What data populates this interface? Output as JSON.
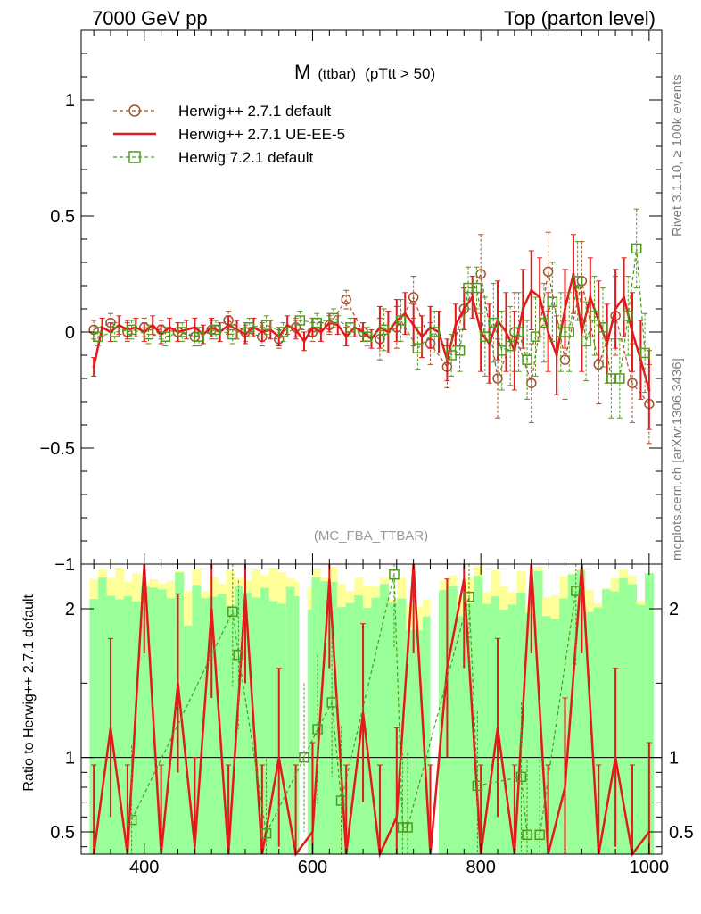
{
  "header": {
    "left": "7000 GeV pp",
    "right": "Top (parton level)"
  },
  "side_text": {
    "rivet": "Rivet 3.1.10, ≥ 100k events",
    "mcplots": "mcplots.cern.ch [arXiv:1306.3436]"
  },
  "chart_data": [
    {
      "type": "line",
      "title_main": "M",
      "title_sub": "(ttbar)",
      "title_rest": "(pTtt > 50)",
      "watermark": "(MC_FBA_TTBAR)",
      "xlim": [
        325,
        1015
      ],
      "ylim": [
        -1.0,
        1.3
      ],
      "yticks": [
        {
          "v": -1,
          "label": "−1"
        },
        {
          "v": -0.5,
          "label": "−0.5"
        },
        {
          "v": 0,
          "label": "0"
        },
        {
          "v": 0.5,
          "label": "0.5"
        },
        {
          "v": 1,
          "label": "1"
        }
      ],
      "legend_position": "top-left",
      "series": [
        {
          "name": "Herwig++ 2.7.1 default",
          "color": "#a0522d",
          "marker": "circle",
          "dashed": true,
          "x": [
            340,
            360,
            380,
            400,
            420,
            440,
            460,
            480,
            500,
            520,
            540,
            560,
            580,
            600,
            620,
            640,
            660,
            680,
            700,
            720,
            740,
            760,
            780,
            800,
            820,
            840,
            860,
            880,
            900,
            920,
            940,
            960,
            980,
            1000
          ],
          "y": [
            0.01,
            0.04,
            0.0,
            0.02,
            0.01,
            0.0,
            -0.02,
            0.01,
            0.05,
            0.0,
            -0.02,
            -0.03,
            0.02,
            0.0,
            0.03,
            0.14,
            0.0,
            -0.03,
            0.02,
            0.15,
            -0.05,
            -0.15,
            0.1,
            0.25,
            -0.2,
            0.0,
            -0.22,
            0.26,
            -0.12,
            0.22,
            -0.14,
            0.07,
            -0.22,
            -0.31
          ]
        },
        {
          "name": "Herwig++ 2.7.1 UE-EE-5",
          "color": "#e31a1c",
          "marker": "none",
          "dashed": false,
          "x": [
            340,
            350,
            360,
            370,
            380,
            390,
            400,
            410,
            420,
            430,
            440,
            450,
            460,
            470,
            480,
            490,
            500,
            510,
            520,
            530,
            540,
            550,
            560,
            570,
            580,
            590,
            600,
            610,
            620,
            630,
            640,
            650,
            660,
            670,
            680,
            690,
            700,
            710,
            720,
            730,
            740,
            750,
            760,
            770,
            780,
            790,
            800,
            810,
            820,
            830,
            840,
            850,
            860,
            870,
            880,
            890,
            900,
            910,
            920,
            930,
            940,
            950,
            960,
            970,
            980,
            990,
            1000
          ],
          "y": [
            -0.15,
            0.02,
            0.0,
            0.03,
            0.01,
            0.02,
            0.0,
            0.03,
            -0.01,
            0.02,
            0.0,
            0.01,
            0.02,
            -0.01,
            0.02,
            0.0,
            0.03,
            0.01,
            -0.01,
            0.02,
            0.0,
            0.01,
            -0.02,
            0.03,
            0.01,
            -0.04,
            0.02,
            0.0,
            0.04,
            0.03,
            -0.02,
            0.02,
            0.0,
            -0.03,
            0.02,
            0.0,
            0.05,
            0.08,
            0.03,
            -0.02,
            0.02,
            0.0,
            -0.12,
            0.03,
            0.1,
            0.15,
            0.0,
            -0.05,
            0.05,
            0.0,
            -0.08,
            0.1,
            0.18,
            0.15,
            0.0,
            -0.1,
            0.1,
            0.25,
            0.0,
            0.15,
            0.05,
            -0.05,
            0.1,
            0.15,
            0.0,
            -0.12,
            -0.25
          ]
        },
        {
          "name": "Herwig 7.2.1 default",
          "color": "#4f9a1d",
          "marker": "square",
          "dashed": true,
          "x": [
            345,
            365,
            385,
            405,
            425,
            445,
            465,
            485,
            505,
            525,
            545,
            565,
            585,
            605,
            625,
            645,
            665,
            685,
            705,
            725,
            745,
            765,
            775,
            785,
            795,
            805,
            815,
            825,
            835,
            845,
            855,
            865,
            875,
            885,
            895,
            905,
            915,
            925,
            935,
            945,
            955,
            965,
            975,
            985,
            995
          ],
          "y": [
            -0.02,
            0.0,
            0.01,
            -0.01,
            -0.02,
            0.0,
            -0.02,
            0.01,
            -0.01,
            0.02,
            0.03,
            0.0,
            0.05,
            0.04,
            0.06,
            0.02,
            -0.02,
            0.01,
            0.05,
            -0.07,
            0.0,
            -0.1,
            -0.08,
            0.19,
            0.19,
            -0.02,
            0.04,
            -0.08,
            -0.06,
            0.0,
            -0.12,
            -0.02,
            0.04,
            0.13,
            0.0,
            0.0,
            0.22,
            -0.04,
            0.07,
            0.02,
            -0.2,
            -0.2,
            0.07,
            0.36,
            -0.09
          ]
        }
      ]
    },
    {
      "type": "line",
      "ylabel": "Ratio to Herwig++ 2.7.1 default",
      "xlim": [
        325,
        1015
      ],
      "ylim": [
        0.35,
        2.3
      ],
      "xticks": [
        {
          "v": 400,
          "label": "400"
        },
        {
          "v": 600,
          "label": "600"
        },
        {
          "v": 800,
          "label": "800"
        },
        {
          "v": 1000,
          "label": "1000"
        }
      ],
      "yticks": [
        {
          "v": 0.5,
          "label": "0.5"
        },
        {
          "v": 1,
          "label": "1"
        },
        {
          "v": 2,
          "label": "2"
        }
      ],
      "band_colors": {
        "inner": "#99ff99",
        "outer": "#ffff99"
      },
      "reference_line": 1,
      "series": [
        {
          "name": "Herwig++ 2.7.1 UE-EE-5",
          "color": "#e31a1c",
          "x": [
            340,
            360,
            380,
            400,
            420,
            440,
            460,
            480,
            500,
            520,
            540,
            560,
            580,
            600,
            620,
            640,
            660,
            680,
            700,
            720,
            740,
            760,
            780,
            800,
            820,
            840,
            860,
            880,
            900,
            920,
            940,
            960,
            980,
            1000
          ],
          "y": [
            0.35,
            1.2,
            0.35,
            2.3,
            0.35,
            1.5,
            0.4,
            2.0,
            0.35,
            2.1,
            0.35,
            1.0,
            0.35,
            0.5,
            2.2,
            0.35,
            1.3,
            0.35,
            0.6,
            2.3,
            0.35,
            1.6,
            2.2,
            0.35,
            1.2,
            0.35,
            2.3,
            0.35,
            0.8,
            2.3,
            0.35,
            1.0,
            0.35,
            0.5
          ]
        },
        {
          "name": "Herwig 7.2.1 default",
          "color": "#4f9a1d",
          "x": [
            385,
            505,
            512,
            545,
            590,
            606,
            623,
            634,
            697,
            707,
            713,
            786,
            796,
            848,
            855,
            870,
            913
          ],
          "y": [
            0.58,
            1.98,
            1.69,
            0.49,
            1.0,
            1.19,
            1.37,
            0.71,
            2.23,
            0.53,
            0.53,
            2.08,
            0.81,
            0.87,
            0.48,
            0.48,
            2.12
          ]
        }
      ]
    }
  ]
}
